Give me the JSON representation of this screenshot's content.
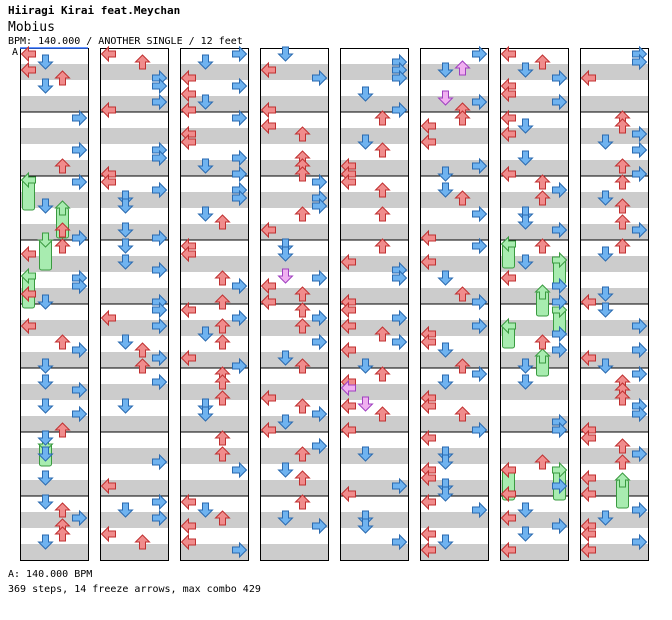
{
  "header": {
    "artist": "Hiiragi Kirai feat.Meychan",
    "title": "Mobius",
    "info": "BPM: 140.000 / ANOTHER SINGLE / 12 feet",
    "bpm_marker": "A"
  },
  "footer": {
    "bpm_line": "A: 140.000 BPM",
    "stats_line": "369 steps, 14 freeze arrows, max combo 429"
  },
  "colors": {
    "band": "#cccccc",
    "left": "#f08c8c",
    "down": "#6fb3f0",
    "up": "#f08c8c",
    "right": "#6fb3f0",
    "freeze": "#a8ecb0",
    "shock": "#f0b0f0"
  },
  "chart_data": {
    "type": "step-chart",
    "columns": 8,
    "measures_per_column": 8,
    "lanes": [
      "left",
      "down",
      "up",
      "right"
    ],
    "bpm": 140.0,
    "difficulty": "ANOTHER SINGLE",
    "feet": 12,
    "steps": 369,
    "freeze_arrows": 14,
    "max_combo": 429
  }
}
